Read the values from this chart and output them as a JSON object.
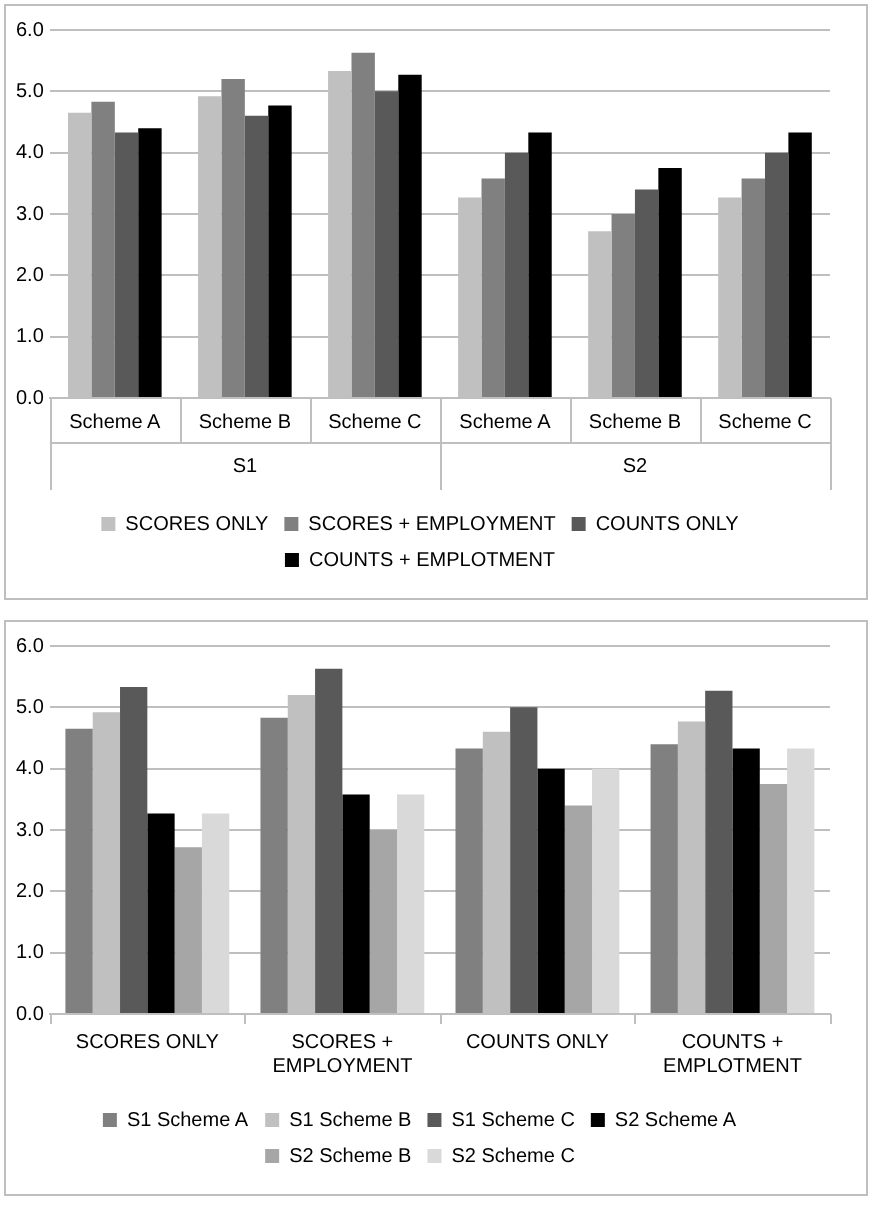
{
  "chart_data": [
    {
      "type": "bar",
      "categories": [
        "Scheme A",
        "Scheme B",
        "Scheme C",
        "Scheme A",
        "Scheme B",
        "Scheme C"
      ],
      "annotations": [
        "S1",
        "S2"
      ],
      "series": [
        {
          "name": "SCORES ONLY",
          "color": "#c0c0c0",
          "values": [
            4.65,
            4.92,
            5.33,
            3.27,
            2.72,
            3.27
          ]
        },
        {
          "name": "SCORES + EMPLOYMENT",
          "color": "#808080",
          "values": [
            4.83,
            5.2,
            5.63,
            3.58,
            3.0,
            3.58
          ]
        },
        {
          "name": "COUNTS ONLY",
          "color": "#595959",
          "values": [
            4.33,
            4.6,
            5.0,
            4.0,
            3.4,
            4.0
          ]
        },
        {
          "name": "COUNTS + EMPLOTMENT",
          "color": "#000000",
          "values": [
            4.4,
            4.77,
            5.27,
            4.33,
            3.75,
            4.33
          ]
        }
      ],
      "ylim": [
        0,
        6
      ],
      "yticks": [
        {
          "value": 0,
          "label": "0.0"
        },
        {
          "value": 1,
          "label": "1.0"
        },
        {
          "value": 2,
          "label": "2.0"
        },
        {
          "value": 3,
          "label": "3.0"
        },
        {
          "value": 4,
          "label": "4.0"
        },
        {
          "value": 5,
          "label": "5.0"
        },
        {
          "value": 6,
          "label": "6.0"
        }
      ],
      "grid": "y",
      "legend": "bottom"
    },
    {
      "type": "bar",
      "categories": [
        "SCORES ONLY",
        "SCORES + EMPLOYMENT",
        "COUNTS ONLY",
        "COUNTS + EMPLOTMENT"
      ],
      "series": [
        {
          "name": "S1 Scheme A",
          "color": "#808080",
          "values": [
            4.65,
            4.83,
            4.33,
            4.4
          ]
        },
        {
          "name": "S1 Scheme B",
          "color": "#c0c0c0",
          "values": [
            4.92,
            5.2,
            4.6,
            4.77
          ]
        },
        {
          "name": "S1 Scheme C",
          "color": "#595959",
          "values": [
            5.33,
            5.63,
            5.0,
            5.27
          ]
        },
        {
          "name": "S2 Scheme A",
          "color": "#000000",
          "values": [
            3.27,
            3.58,
            4.0,
            4.33
          ]
        },
        {
          "name": "S2 Scheme B",
          "color": "#a6a6a6",
          "values": [
            2.72,
            3.0,
            3.4,
            3.75
          ]
        },
        {
          "name": "S2 Scheme C",
          "color": "#d9d9d9",
          "values": [
            3.27,
            3.58,
            4.0,
            4.33
          ]
        }
      ],
      "ylim": [
        0,
        6
      ],
      "yticks": [
        {
          "value": 0,
          "label": "0.0"
        },
        {
          "value": 1,
          "label": "1.0"
        },
        {
          "value": 2,
          "label": "2.0"
        },
        {
          "value": 3,
          "label": "3.0"
        },
        {
          "value": 4,
          "label": "4.0"
        },
        {
          "value": 5,
          "label": "5.0"
        },
        {
          "value": 6,
          "label": "6.0"
        }
      ],
      "grid": "y",
      "legend": "bottom"
    }
  ]
}
